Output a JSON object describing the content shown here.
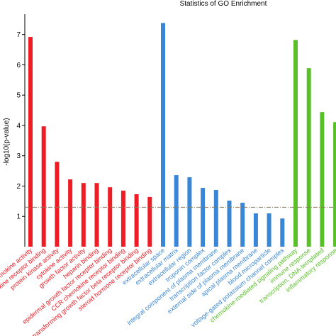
{
  "chart_data": {
    "type": "bar",
    "title": "Statistics of GO Enrichment",
    "y_label": "-log10(p-value)",
    "ylim": [
      0,
      7.6
    ],
    "yticks": [
      1,
      2,
      3,
      4,
      5,
      6,
      7
    ],
    "threshold": 1.3,
    "series": [
      {
        "color": "#ee1c25",
        "categories": [
          "chemokine activity",
          "cytokine receptor binding",
          "protein kinase activity",
          "cytokine activity",
          "growth factor activity",
          "heparin binding",
          "epidermal growth factor receptor binding",
          "CCR chemokine receptor binding",
          "transforming growth factor beta receptor binding",
          "steroid hormone receptor binding"
        ],
        "values": [
          6.92,
          3.97,
          2.8,
          2.22,
          2.1,
          2.1,
          1.96,
          1.85,
          1.73,
          1.64
        ]
      },
      {
        "color": "#3a86d6",
        "categories": [
          "extracellular space",
          "extracellular matrix",
          "extracellular region",
          "troponin complex",
          "integral component of plasma membrane",
          "transcription factor complex",
          "external side of plasma membrane",
          "apical plasma membrane",
          "blood microparticle",
          "voltage-gated potassium channel complex"
        ],
        "values": [
          7.38,
          2.36,
          2.29,
          1.94,
          1.87,
          1.52,
          1.45,
          1.1,
          1.1,
          0.93
        ]
      },
      {
        "color": "#5ac02a",
        "categories": [
          "chemokine-mediated signaling pathway",
          "immune response",
          "transcription, DNA-templated",
          "inflammatory response"
        ],
        "values": [
          6.82,
          5.89,
          4.44,
          4.11
        ]
      }
    ]
  }
}
